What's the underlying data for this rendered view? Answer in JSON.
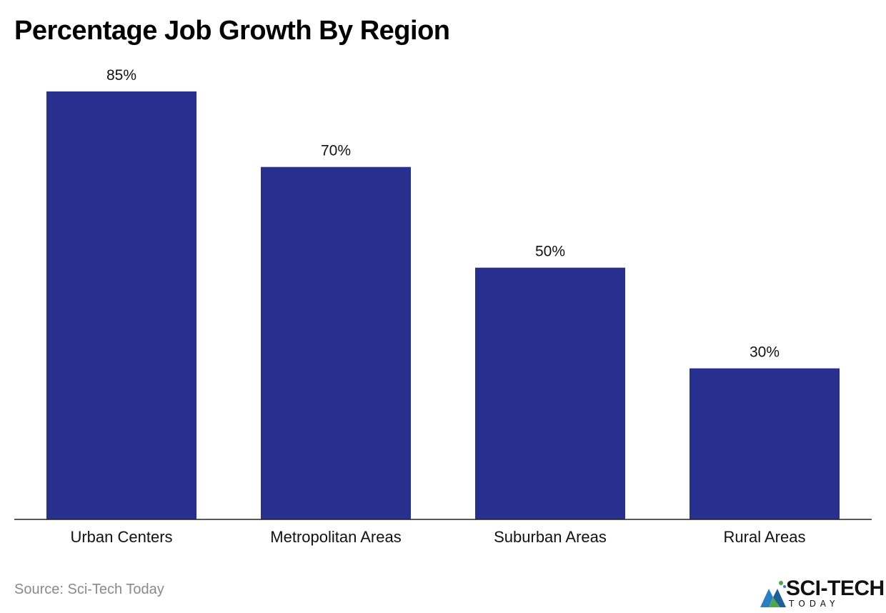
{
  "chart_data": {
    "type": "bar",
    "title": "Percentage Job Growth By Region",
    "categories": [
      "Urban Centers",
      "Metropolitan Areas",
      "Suburban Areas",
      "Rural Areas"
    ],
    "values": [
      85,
      70,
      50,
      30
    ],
    "value_labels": [
      "85%",
      "70%",
      "50%",
      "30%"
    ],
    "xlabel": "",
    "ylabel": "",
    "ylim": [
      0,
      85
    ],
    "grid": false,
    "bar_color": "#272f8f"
  },
  "footer": {
    "source": "Source: Sci-Tech Today",
    "logo_name": "SCI-TECH",
    "logo_sub": "TODAY"
  },
  "colors": {
    "bar": "#272f8f",
    "axis": "#222222",
    "source_text": "#8a8a8a",
    "logo_blue": "#2a7fc1",
    "logo_green": "#4ca84a"
  }
}
